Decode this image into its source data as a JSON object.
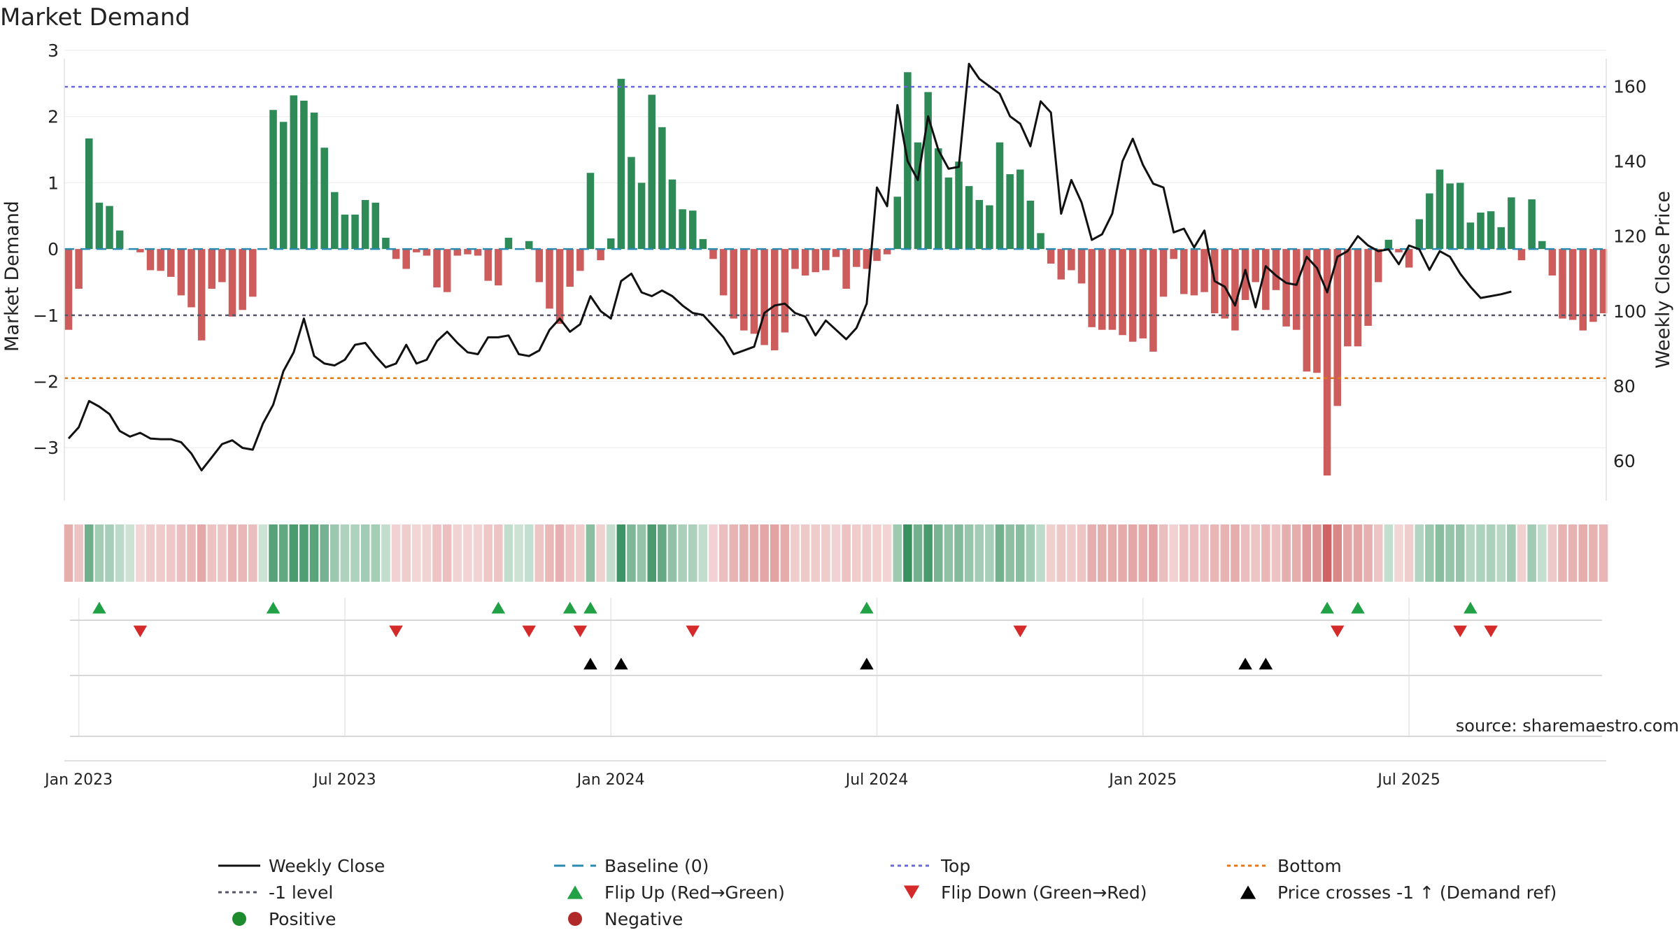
{
  "chart_data": {
    "type": "bar+line",
    "title": "Market Demand",
    "ylabel_left": "Market Demand",
    "ylabel_right": "Weekly Close Price",
    "source": "source: sharemaestro.com",
    "ylim_left": [
      -3.8,
      3.0
    ],
    "ylim_right": [
      49.4,
      169.6
    ],
    "yticks_left": [
      3,
      2,
      1,
      0,
      -1,
      -2,
      -3
    ],
    "yticks_left_labels": [
      "3",
      "2",
      "1",
      "0",
      "−1",
      "−2",
      "−3"
    ],
    "yticks_right": [
      160,
      140,
      120,
      100,
      80,
      60
    ],
    "x_labels": [
      "Jan 2023",
      "Jul 2023",
      "Jan 2024",
      "Jul 2024",
      "Jan 2025",
      "Jul 2025"
    ],
    "x_label_weeks": [
      1,
      27,
      53,
      79,
      105,
      131
    ],
    "levels": {
      "top": 2.45,
      "minus_one": -1.0,
      "bottom": -1.95,
      "baseline": 0
    },
    "demand": [
      -1.22,
      -0.6,
      1.67,
      0.7,
      0.65,
      0.28,
      0.0,
      -0.05,
      -0.32,
      -0.33,
      -0.42,
      -0.7,
      -0.88,
      -1.38,
      -0.6,
      -0.5,
      -1.02,
      -0.92,
      -0.72,
      0.0,
      2.1,
      1.92,
      2.32,
      2.24,
      2.06,
      1.53,
      0.86,
      0.52,
      0.52,
      0.74,
      0.7,
      0.17,
      -0.15,
      -0.3,
      -0.05,
      -0.1,
      -0.58,
      -0.65,
      -0.1,
      -0.08,
      -0.1,
      -0.48,
      -0.55,
      0.17,
      0.0,
      0.12,
      -0.5,
      -0.9,
      -1.13,
      -0.57,
      -0.33,
      1.15,
      -0.17,
      0.16,
      2.57,
      1.39,
      1.0,
      2.33,
      1.84,
      1.05,
      0.6,
      0.58,
      0.15,
      -0.15,
      -0.7,
      -1.05,
      -1.23,
      -1.28,
      -1.45,
      -1.53,
      -1.26,
      -0.3,
      -0.4,
      -0.35,
      -0.32,
      -0.12,
      -0.6,
      -0.27,
      -0.3,
      -0.18,
      -0.08,
      0.79,
      2.67,
      1.61,
      2.37,
      1.52,
      1.08,
      1.32,
      0.95,
      0.74,
      0.66,
      1.61,
      1.13,
      1.2,
      0.73,
      0.24,
      -0.22,
      -0.46,
      -0.32,
      -0.52,
      -1.18,
      -1.22,
      -1.22,
      -1.3,
      -1.4,
      -1.35,
      -1.55,
      -0.72,
      -0.15,
      -0.68,
      -0.7,
      -0.65,
      -0.97,
      -1.05,
      -1.23,
      -0.77,
      -0.5,
      -0.92,
      -0.62,
      -1.17,
      -1.22,
      -1.85,
      -1.87,
      -3.42,
      -2.37,
      -1.47,
      -1.47,
      -1.16,
      -0.5,
      0.14,
      -0.05,
      -0.28,
      0.45,
      0.84,
      1.2,
      0.99,
      1.0,
      0.4,
      0.55,
      0.57,
      0.33,
      0.78,
      -0.17,
      0.75,
      0.12,
      -0.4,
      -1.05,
      -1.07,
      -1.23,
      -1.1,
      -0.97
    ],
    "close": [
      66,
      69,
      76,
      74.5,
      72.5,
      68,
      66.5,
      67.5,
      66,
      65.8,
      65.8,
      65,
      62,
      57.5,
      61,
      64.5,
      65.5,
      63.5,
      63,
      70,
      75,
      84,
      89,
      98,
      88,
      86,
      85.5,
      87,
      91,
      91.5,
      88,
      85,
      86,
      91,
      86,
      87,
      92,
      94.5,
      91.5,
      89,
      88.5,
      93,
      93,
      93.5,
      88.5,
      88,
      89.5,
      95,
      98,
      94.5,
      96.5,
      104,
      100,
      98,
      108,
      110,
      105,
      104,
      105.5,
      104,
      101.5,
      99.5,
      99,
      96,
      93,
      88.5,
      89.5,
      90.5,
      99.5,
      101.5,
      102,
      99.5,
      98.5,
      93.5,
      97.5,
      95,
      92.5,
      95.5,
      102,
      133,
      128,
      155,
      140,
      135,
      152,
      143,
      138,
      138.5,
      166,
      162,
      160,
      158,
      152,
      150,
      144,
      156,
      153,
      126,
      135,
      129,
      119,
      120.5,
      126,
      140,
      146,
      139,
      134,
      133,
      121,
      122,
      117,
      121.5,
      108,
      106.5,
      101.5,
      111,
      101,
      112,
      109.5,
      107.5,
      107,
      114.5,
      111.5,
      105,
      114.5,
      116,
      120,
      117.5,
      116,
      116.5,
      112.5,
      117.5,
      116.5,
      111,
      116,
      114.5,
      110,
      106.5,
      103.5,
      104,
      104.5,
      105.2
    ],
    "flip_up_weeks": [
      3,
      20,
      42,
      49,
      51,
      78,
      123,
      126,
      137
    ],
    "flip_down_weeks": [
      7,
      32,
      45,
      50,
      61,
      93,
      124,
      136,
      139
    ],
    "cross_weeks": [
      51,
      54,
      78,
      115,
      117
    ],
    "legend": [
      {
        "key": "weekly_close",
        "label": "Weekly Close"
      },
      {
        "key": "baseline",
        "label": "Baseline (0)"
      },
      {
        "key": "top",
        "label": "Top"
      },
      {
        "key": "bottom",
        "label": "Bottom"
      },
      {
        "key": "minus_one",
        "label": "-1 level"
      },
      {
        "key": "flip_up",
        "label": "Flip Up (Red→Green)"
      },
      {
        "key": "flip_down",
        "label": "Flip Down (Green→Red)"
      },
      {
        "key": "cross",
        "label": "Price crosses -1 ↑ (Demand ref)"
      },
      {
        "key": "positive",
        "label": "Positive"
      },
      {
        "key": "negative",
        "label": "Negative"
      }
    ]
  },
  "colors": {
    "positive": "#2e8b57",
    "negative": "#cd5c5c",
    "line": "#111111",
    "top": "#6a6adc",
    "minus_one": "#555566",
    "bottom": "#e07820",
    "baseline": "#2a8ab0",
    "flip_up": "#22a046",
    "flip_down": "#d42a2a",
    "cross": "#000000",
    "positive_dot": "#1e8c2e",
    "negative_dot": "#b02a2a"
  }
}
